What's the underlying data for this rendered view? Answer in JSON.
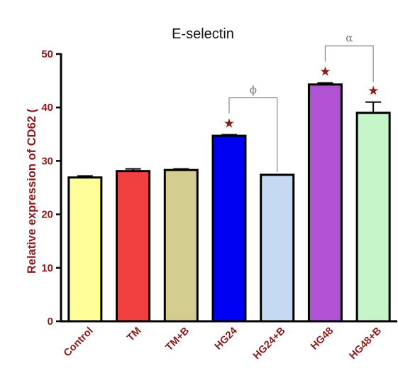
{
  "chart_data": {
    "type": "bar",
    "title": "E-selectin",
    "ylabel": "Relative expression of CD62 (",
    "xlabel": "",
    "ylim": [
      0,
      50
    ],
    "yticks": [
      0,
      10,
      20,
      30,
      40,
      50
    ],
    "grid": false,
    "categories": [
      "Control",
      "TM",
      "TM+B",
      "HG24",
      "HG24+B",
      "HG48",
      "HG48+B"
    ],
    "values": [
      26.9,
      28.1,
      28.3,
      34.7,
      27.4,
      44.3,
      39.0
    ],
    "errors": [
      0.3,
      0.4,
      0.2,
      0.2,
      0.0,
      0.3,
      2.0
    ],
    "colors": [
      "#ffff99",
      "#f24040",
      "#d3cd8f",
      "#0000f5",
      "#c5daf2",
      "#b151d3",
      "#c6f5c9"
    ],
    "edge_color": "#000000",
    "significance_marks": [
      {
        "category": "HG24",
        "symbol": "★"
      },
      {
        "category": "HG48",
        "symbol": "★"
      },
      {
        "category": "HG48+B",
        "symbol": "★"
      }
    ],
    "comparison_brackets": [
      {
        "from": "HG24",
        "to": "HG24+B",
        "symbol": "ϕ"
      },
      {
        "from": "HG48",
        "to": "HG48+B",
        "symbol": "α"
      }
    ]
  }
}
